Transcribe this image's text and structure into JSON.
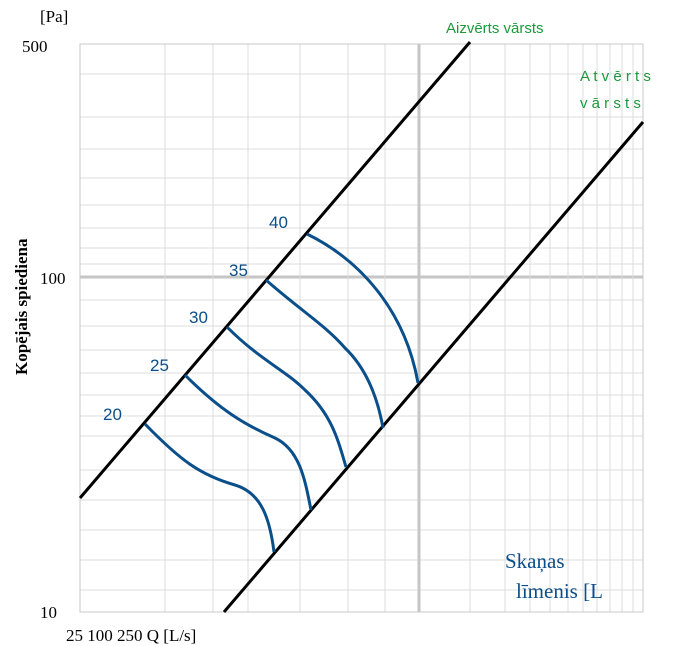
{
  "chart_data": {
    "type": "line",
    "scale": {
      "x": "log",
      "y": "log"
    },
    "ylim": [
      10,
      500
    ],
    "y_ticks": [
      {
        "value": 10,
        "label": "10"
      },
      {
        "value": 100,
        "label": "100"
      },
      {
        "value": 500,
        "label": "500"
      }
    ],
    "y_unit": "[Pa]",
    "ylabel": "Kopējais spiediena",
    "x_label_text": "25 100 250 Q [L/s]",
    "boundary_lines": [
      {
        "name": "Aizvērts vārsts",
        "label_lines": [
          "Aizvērts vārsts"
        ],
        "color": "#000000"
      },
      {
        "name": "Atvērts vārsts",
        "label_lines": [
          "A t v ē r t s",
          "v ā r s t s"
        ],
        "color": "#000000"
      }
    ],
    "label_color": "#1a9a3c",
    "curve_color": "#0b4f8a",
    "sound_levels": {
      "title_lines": [
        "Skaņas",
        "līmenis [L"
      ],
      "series": [
        {
          "label": "20"
        },
        {
          "label": "25"
        },
        {
          "label": "30"
        },
        {
          "label": "35"
        },
        {
          "label": "40"
        }
      ]
    },
    "grid": true
  }
}
